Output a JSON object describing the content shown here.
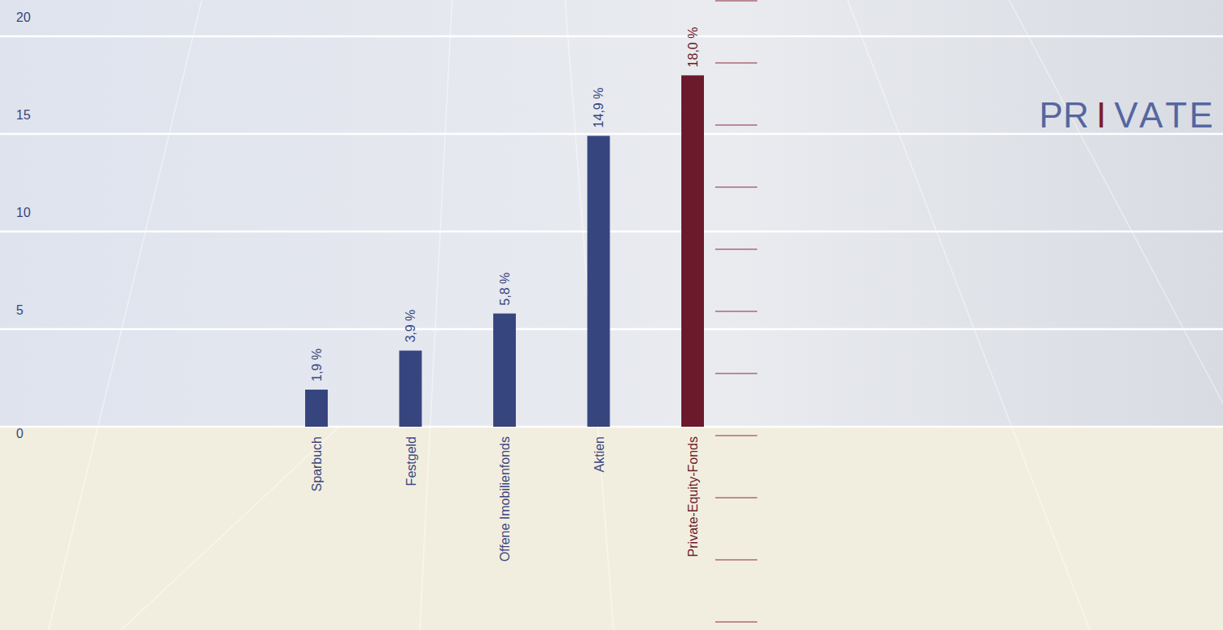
{
  "chart_data": {
    "type": "bar",
    "title": "PRIVATE",
    "categories": [
      "Sparbuch",
      "Festgeld",
      "Offene Imobilienfonds",
      "Aktien",
      "Private-Equity-Fonds"
    ],
    "values": [
      1.9,
      3.9,
      5.8,
      14.9,
      18.0
    ],
    "value_labels": [
      "1,9 %",
      "3,9 %",
      "5,8 %",
      "14,9 %",
      "18,0 %"
    ],
    "colors": [
      "#37457f",
      "#37457f",
      "#37457f",
      "#37457f",
      "#6a1a2b"
    ],
    "ylim": [
      0,
      20
    ],
    "yticks": [
      0,
      5,
      10,
      15,
      20
    ],
    "grid": true,
    "data_labels": true
  }
}
